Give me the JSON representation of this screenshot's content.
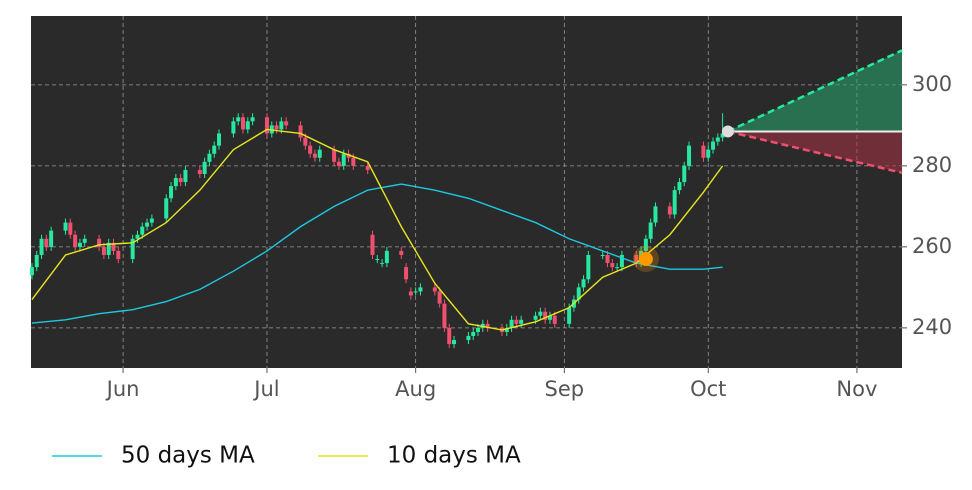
{
  "chart_data": {
    "type": "candlestick",
    "xlim": [
      132.8,
      314.4
    ],
    "ylim": [
      230.1,
      317
    ],
    "xticks": [
      {
        "value": 152,
        "label": "Jun"
      },
      {
        "value": 182,
        "label": "Jul"
      },
      {
        "value": 213,
        "label": "Aug"
      },
      {
        "value": 244,
        "label": "Sep"
      },
      {
        "value": 274,
        "label": "Oct"
      },
      {
        "value": 305,
        "label": "Nov"
      }
    ],
    "yticks": [
      240,
      260,
      280,
      300
    ],
    "grid": true,
    "up_color": "#26e8a0",
    "down_color": "#f0506e",
    "candles": {
      "x": [
        133,
        134,
        135,
        136,
        137,
        140,
        141,
        142,
        143,
        144,
        147,
        148,
        149,
        150,
        151,
        154,
        155,
        156,
        157,
        158,
        161,
        162,
        163,
        164,
        165,
        168,
        169,
        170,
        171,
        172,
        175,
        176,
        177,
        178,
        179,
        182,
        183,
        184,
        185,
        186,
        189,
        190,
        191,
        192,
        193,
        196,
        197,
        198,
        199,
        200,
        203,
        204,
        205,
        206,
        207,
        210,
        211,
        212,
        213,
        214,
        217,
        218,
        219,
        220,
        221,
        224,
        225,
        226,
        227,
        228,
        231,
        232,
        233,
        234,
        235,
        238,
        239,
        240,
        241,
        242,
        245,
        246,
        247,
        248,
        249,
        252,
        253,
        254,
        255,
        256,
        259,
        260,
        261,
        262,
        263,
        266,
        267,
        268,
        269,
        270,
        273,
        274,
        275,
        276,
        277
      ],
      "open": [
        253,
        255,
        258,
        262,
        260,
        264,
        266,
        263,
        260,
        261,
        262,
        260,
        258,
        261,
        259,
        257,
        262,
        263,
        265,
        266,
        267,
        272,
        275,
        277,
        276,
        279,
        278,
        281,
        283,
        285,
        288,
        291,
        292,
        289,
        291,
        292,
        288,
        290,
        289,
        291,
        290,
        287,
        285,
        283,
        282,
        284,
        281,
        280,
        283,
        282,
        280,
        263,
        257,
        256,
        256,
        259,
        255,
        249,
        249,
        249,
        250,
        249,
        246,
        240,
        236,
        237,
        238,
        239,
        240,
        241,
        240,
        239,
        240,
        242,
        241,
        242,
        243,
        244,
        242,
        243,
        241,
        245,
        247,
        250,
        252,
        258,
        258,
        256,
        255,
        255,
        258,
        256,
        259,
        262,
        266,
        270,
        268,
        274,
        276,
        280,
        285,
        282,
        284,
        286,
        287
      ],
      "high": [
        256,
        259,
        263,
        263,
        265,
        267,
        267,
        264,
        262,
        263,
        263,
        261,
        262,
        262,
        260,
        263,
        264,
        266,
        267,
        268,
        273,
        276,
        278,
        278,
        280,
        280,
        282,
        284,
        286,
        289,
        292,
        293,
        293,
        292,
        293,
        293,
        291,
        291,
        292,
        292,
        291,
        288,
        286,
        284,
        285,
        285,
        282,
        284,
        284,
        283,
        281,
        264,
        258,
        257,
        260,
        260,
        256,
        250,
        250,
        251,
        251,
        250,
        247,
        241,
        238,
        239,
        240,
        241,
        242,
        242,
        241,
        241,
        243,
        243,
        243,
        244,
        245,
        245,
        244,
        244,
        246,
        248,
        251,
        253,
        259,
        259,
        259,
        257,
        256,
        259,
        259,
        260,
        263,
        267,
        271,
        271,
        275,
        277,
        281,
        286,
        286,
        285,
        287,
        288,
        293
      ],
      "low": [
        252,
        254,
        257,
        259,
        259,
        263,
        262,
        259,
        259,
        260,
        259,
        257,
        257,
        258,
        256,
        256,
        261,
        262,
        264,
        265,
        266,
        271,
        274,
        275,
        275,
        277,
        277,
        280,
        282,
        284,
        287,
        290,
        288,
        288,
        290,
        287,
        287,
        288,
        288,
        289,
        286,
        284,
        282,
        281,
        281,
        280,
        279,
        279,
        281,
        279,
        278,
        257,
        256,
        255,
        255,
        257,
        251,
        247,
        248,
        248,
        248,
        245,
        239,
        235,
        235,
        236,
        237,
        238,
        239,
        239,
        238,
        238,
        239,
        240,
        240,
        241,
        242,
        241,
        241,
        240,
        240,
        244,
        246,
        249,
        251,
        257,
        255,
        254,
        254,
        254,
        255,
        255,
        258,
        261,
        265,
        267,
        267,
        273,
        275,
        279,
        281,
        281,
        283,
        285,
        286
      ],
      "close": [
        255,
        258,
        262,
        260,
        264,
        266,
        263,
        260,
        261,
        262,
        260,
        258,
        261,
        259,
        257,
        262,
        263,
        265,
        266,
        267,
        272,
        275,
        277,
        276,
        279,
        278,
        281,
        283,
        285,
        288,
        291,
        292,
        289,
        291,
        292,
        288,
        290,
        289,
        291,
        290,
        287,
        285,
        283,
        282,
        284,
        281,
        280,
        283,
        282,
        280,
        279,
        258,
        257,
        256,
        259,
        258,
        252,
        248,
        249,
        250,
        249,
        246,
        240,
        236,
        237,
        238,
        239,
        240,
        241,
        240,
        239,
        240,
        242,
        241,
        242,
        243,
        244,
        242,
        243,
        241,
        245,
        247,
        250,
        252,
        258,
        258,
        256,
        255,
        255,
        258,
        256,
        259,
        262,
        266,
        270,
        268,
        274,
        276,
        280,
        285,
        282,
        284,
        286,
        287,
        288
      ]
    },
    "series": [
      {
        "name": "50 days MA",
        "color": "#1ec8e0",
        "x": [
          133,
          140,
          147,
          154,
          161,
          168,
          175,
          182,
          189,
          196,
          203,
          210,
          217,
          224,
          231,
          238,
          245,
          252,
          259,
          266,
          273,
          277
        ],
        "values": [
          241.2,
          242,
          243.5,
          244.5,
          246.5,
          249.5,
          254,
          259,
          265,
          270,
          274,
          275.5,
          274,
          272,
          269,
          266,
          262,
          259,
          256,
          254.5,
          254.5,
          255
        ]
      },
      {
        "name": "10 days MA",
        "color": "#e6e620",
        "x": [
          133,
          140,
          147,
          154,
          161,
          168,
          175,
          182,
          189,
          196,
          203,
          210,
          217,
          224,
          231,
          238,
          245,
          252,
          259,
          266,
          273,
          277
        ],
        "values": [
          247,
          258,
          260.5,
          261,
          266,
          274,
          284,
          289,
          288,
          284,
          281,
          265,
          251,
          241,
          239.5,
          241.5,
          245,
          252.5,
          256,
          263,
          273.5,
          280
        ]
      }
    ],
    "signal": {
      "x": 261,
      "value": 257,
      "color": "#ff9900"
    },
    "forecast": {
      "x": [
        278.1,
        314.4
      ],
      "start": 288.5,
      "upper": 308.5,
      "lower": 278.3
    }
  }
}
